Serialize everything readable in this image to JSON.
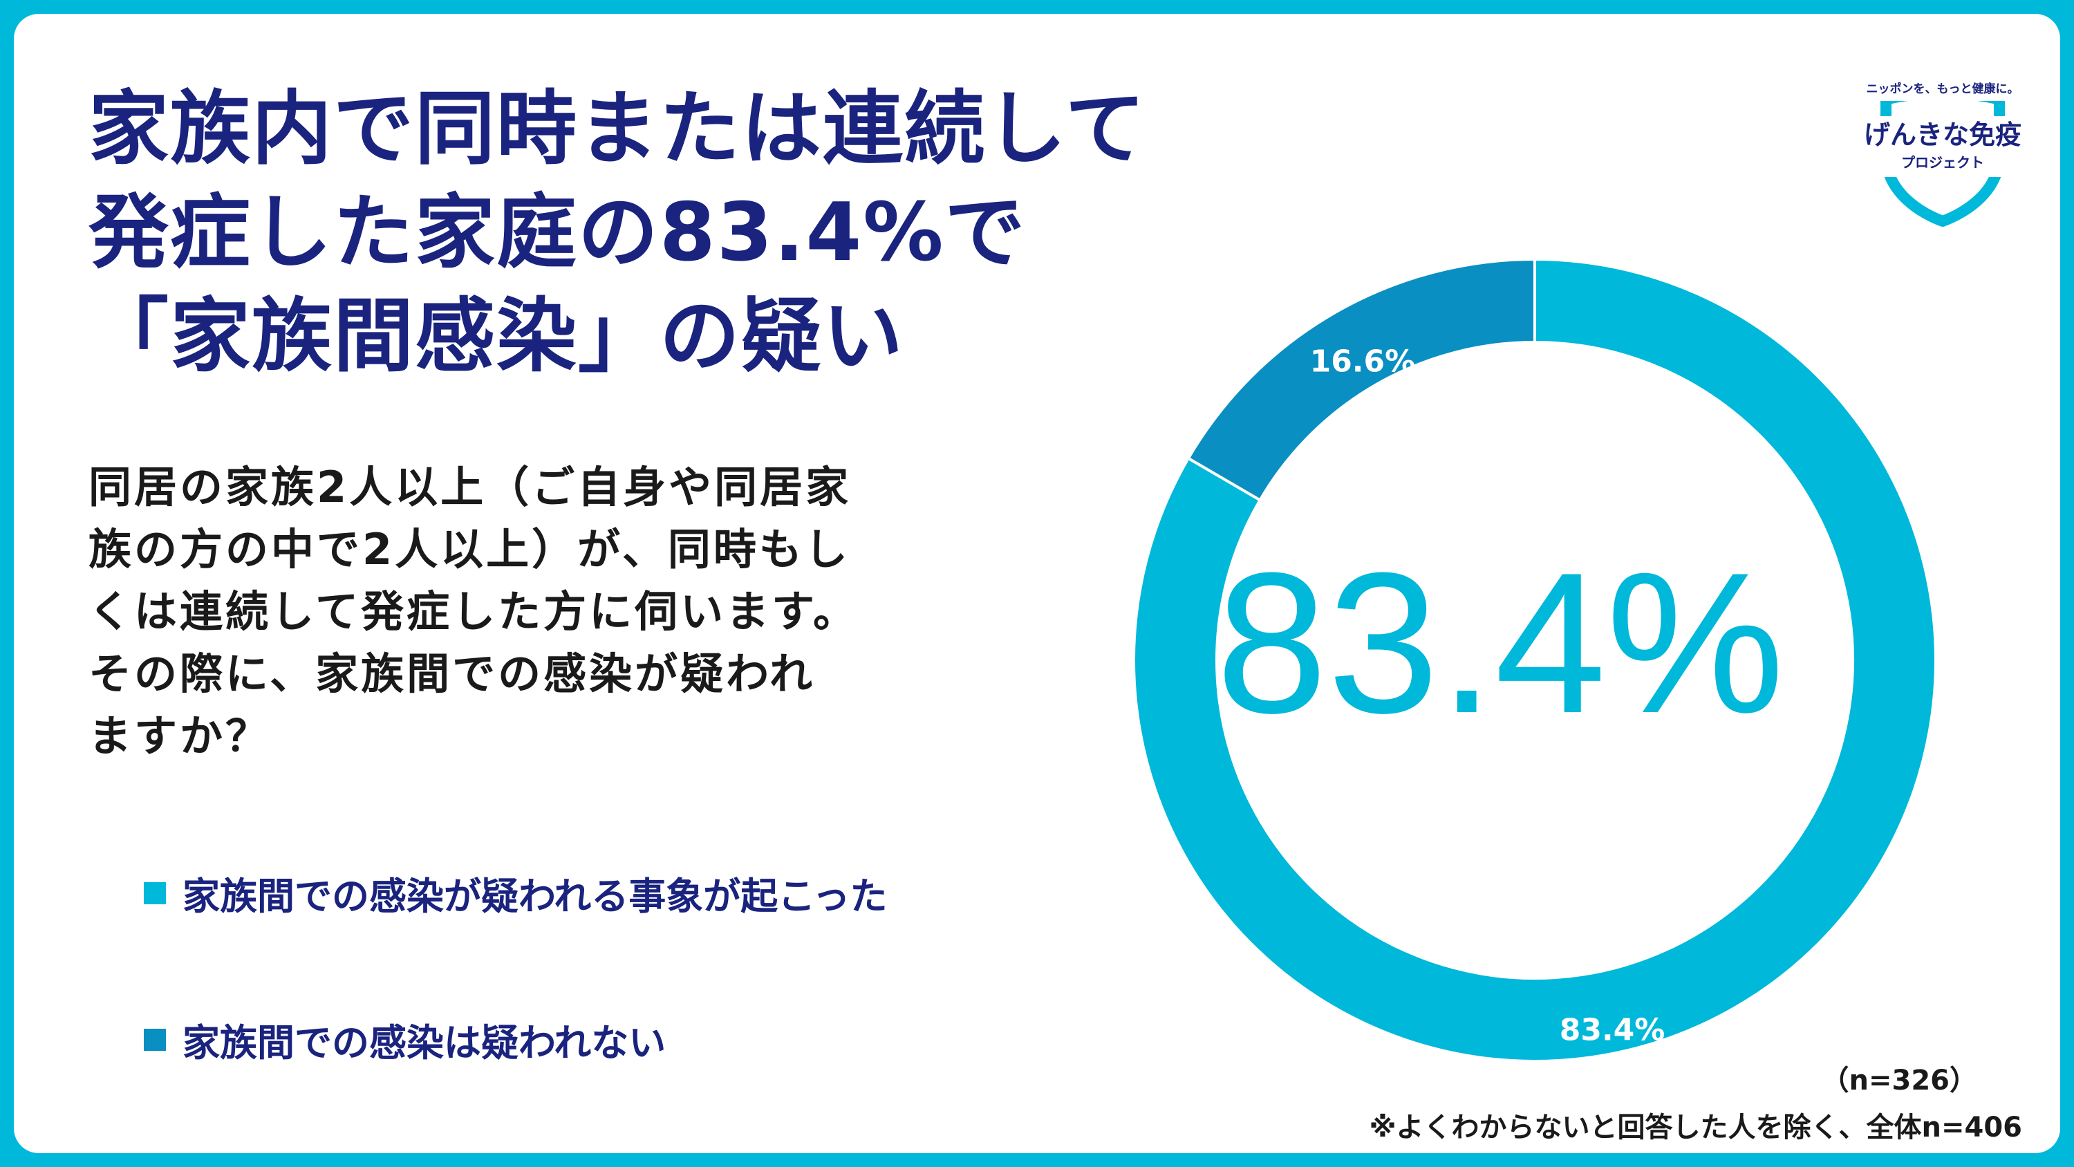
{
  "title_lines": [
    "家族内で同時または連続して",
    "発症した家庭の83.4%で",
    "「家族間感染」の疑い"
  ],
  "question_lines": [
    "同居の家族2人以上（ご自身や同居家",
    "族の方の中で2人以上）が、同時もし",
    "くは連続して発症した方に伺います。",
    "その際に、家族間での感染が疑われ",
    "ますか？"
  ],
  "logo": {
    "tagline": "ニッポンを、もっと健康に。",
    "name": "げんきな免疫",
    "sub": "プロジェクト"
  },
  "colors": {
    "primary": "#00b8d9",
    "secondary": "#0a8fc2",
    "title": "#1a237e"
  },
  "chart_data": {
    "type": "pie",
    "style": "donut",
    "categories": [
      "家族間での感染が疑われる事象が起こった",
      "家族間での感染は疑われない"
    ],
    "values": [
      83.4,
      16.6
    ],
    "data_labels": [
      "83.4%",
      "16.6%"
    ],
    "center_label": "83.4%",
    "colors": [
      "#00b8d9",
      "#0a8fc2"
    ],
    "legend_position": "left"
  },
  "footnote": {
    "sample": "（n=326）",
    "note": "※よくわからないと回答した人を除く、全体n=406"
  }
}
